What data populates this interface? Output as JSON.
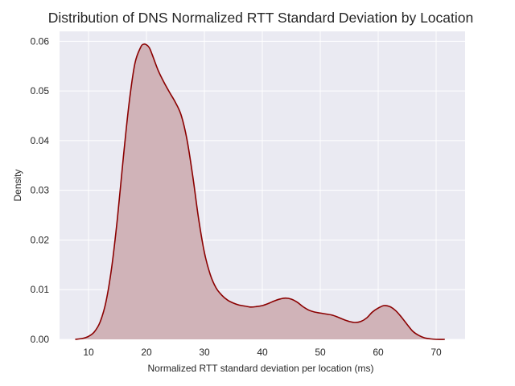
{
  "chart_data": {
    "type": "area",
    "title": "Distribution of DNS Normalized RTT Standard Deviation by Location",
    "xlabel": "Normalized RTT standard deviation per location (ms)",
    "ylabel": "Density",
    "xlim": [
      5,
      75
    ],
    "ylim": [
      0,
      0.062
    ],
    "xticks": [
      "10",
      "20",
      "30",
      "40",
      "50",
      "60",
      "70"
    ],
    "yticks": [
      "0.00",
      "0.01",
      "0.02",
      "0.03",
      "0.04",
      "0.05",
      "0.06"
    ],
    "grid": true,
    "background": "#eaeaf2",
    "line_color": "#8b0000",
    "fill_color": "#d0b3b8",
    "series": [
      {
        "x": [
          7.7,
          9,
          10,
          11,
          12,
          13,
          14,
          15,
          16,
          17,
          18,
          19,
          19.5,
          20,
          20.5,
          21,
          22,
          23,
          24,
          25,
          26,
          27,
          28,
          29,
          30,
          31,
          32,
          33,
          34,
          35,
          36,
          37,
          38,
          39,
          40,
          41,
          42,
          43,
          44,
          45,
          46,
          47,
          48,
          49,
          50,
          51,
          52,
          53,
          54,
          55,
          56,
          57,
          58,
          59,
          60,
          61,
          62,
          63,
          64,
          65,
          66,
          67,
          68,
          69,
          70,
          71.5
        ],
        "y": [
          0.0,
          0.0002,
          0.0006,
          0.0015,
          0.0035,
          0.0075,
          0.0145,
          0.0245,
          0.0365,
          0.0475,
          0.0555,
          0.0588,
          0.0594,
          0.0593,
          0.0587,
          0.0573,
          0.0542,
          0.0518,
          0.0497,
          0.0477,
          0.0451,
          0.0402,
          0.0328,
          0.0243,
          0.0175,
          0.0131,
          0.0104,
          0.0089,
          0.0079,
          0.0073,
          0.0069,
          0.0067,
          0.0065,
          0.0066,
          0.0068,
          0.0072,
          0.0077,
          0.0081,
          0.0083,
          0.0081,
          0.0075,
          0.0066,
          0.0059,
          0.0055,
          0.0053,
          0.0051,
          0.0049,
          0.0045,
          0.004,
          0.0036,
          0.0034,
          0.0036,
          0.0043,
          0.0055,
          0.0063,
          0.0068,
          0.0066,
          0.0058,
          0.0045,
          0.003,
          0.0016,
          0.0008,
          0.0003,
          0.0001,
          0.0,
          0.0
        ]
      }
    ]
  }
}
